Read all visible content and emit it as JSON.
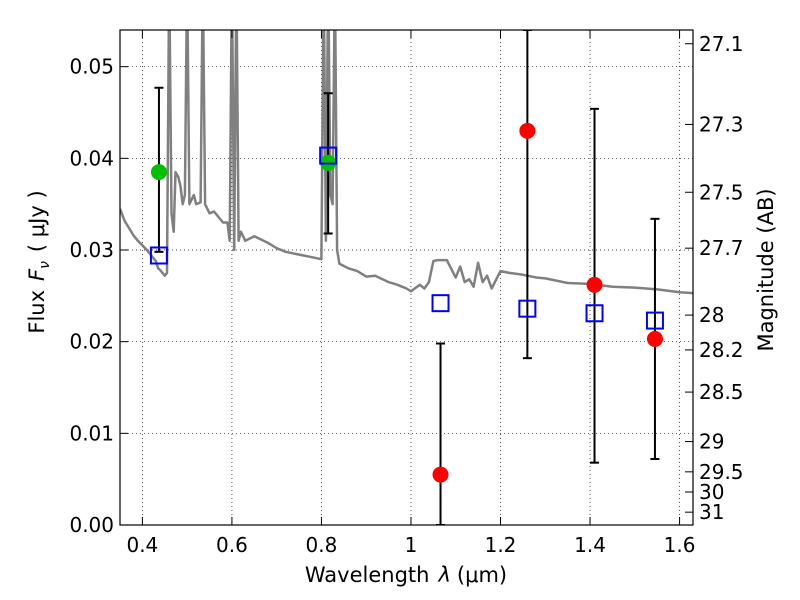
{
  "chart_data": {
    "type": "scatter",
    "xlabel_text": "Wavelength",
    "xlabel_symbol": "λ",
    "xlabel_unit": "(μm)",
    "ylabel_text": "Flux",
    "ylabel_symbol": "F",
    "ylabel_subscript": "ν",
    "ylabel_unit": "( μJy )",
    "y2label": "Magnitude (AB)",
    "xlim": [
      0.35,
      1.63
    ],
    "ylim": [
      0.0,
      0.054
    ],
    "grid": true,
    "xticks": [
      0.4,
      0.6,
      0.8,
      1.0,
      1.2,
      1.4,
      1.6
    ],
    "xtick_labels": [
      "0.4",
      "0.6",
      "0.8",
      "1",
      "1.2",
      "1.4",
      "1.6"
    ],
    "yticks": [
      0.0,
      0.01,
      0.02,
      0.03,
      0.04,
      0.05
    ],
    "ytick_labels": [
      "0.00",
      "0.01",
      "0.02",
      "0.03",
      "0.04",
      "0.05"
    ],
    "y2ticks": [
      {
        "label": "27.1",
        "flux": 0.0525
      },
      {
        "label": "27.3",
        "flux": 0.0437
      },
      {
        "label": "27.5",
        "flux": 0.0363
      },
      {
        "label": "27.7",
        "flux": 0.0302
      },
      {
        "label": "28",
        "flux": 0.0229
      },
      {
        "label": "28.2",
        "flux": 0.0191
      },
      {
        "label": "28.5",
        "flux": 0.0145
      },
      {
        "label": "29",
        "flux": 0.0091
      },
      {
        "label": "29.5",
        "flux": 0.0058
      },
      {
        "label": "30",
        "flux": 0.0036
      },
      {
        "label": "31",
        "flux": 0.0014
      }
    ],
    "colors": {
      "model": "#808080",
      "green": "#00c000",
      "red": "#ff0000",
      "blue": "#0000ff",
      "errorbar": "#000000"
    },
    "model_spectrum": {
      "x": [
        0.35,
        0.36,
        0.37,
        0.38,
        0.39,
        0.4,
        0.41,
        0.42,
        0.43,
        0.435,
        0.44,
        0.445,
        0.45,
        0.455,
        0.46,
        0.465,
        0.47,
        0.474,
        0.48,
        0.485,
        0.49,
        0.495,
        0.5,
        0.505,
        0.51,
        0.515,
        0.52,
        0.53,
        0.535,
        0.54,
        0.55,
        0.56,
        0.58,
        0.59,
        0.595,
        0.6,
        0.605,
        0.61,
        0.615,
        0.62,
        0.63,
        0.65,
        0.68,
        0.7,
        0.72,
        0.75,
        0.78,
        0.8,
        0.805,
        0.81,
        0.815,
        0.82,
        0.825,
        0.83,
        0.835,
        0.84,
        0.86,
        0.88,
        0.9,
        0.92,
        0.95,
        0.97,
        0.99,
        1.0,
        1.02,
        1.03,
        1.04,
        1.05,
        1.06,
        1.08,
        1.1,
        1.11,
        1.12,
        1.13,
        1.14,
        1.15,
        1.16,
        1.17,
        1.18,
        1.2,
        1.22,
        1.25,
        1.28,
        1.3,
        1.35,
        1.4,
        1.45,
        1.5,
        1.55,
        1.6,
        1.63
      ],
      "y": [
        0.0345,
        0.0332,
        0.0324,
        0.0316,
        0.031,
        0.0305,
        0.03,
        0.0294,
        0.0288,
        0.028,
        0.0278,
        0.0275,
        0.0272,
        0.0275,
        0.06,
        0.034,
        0.032,
        0.0385,
        0.038,
        0.037,
        0.035,
        0.036,
        0.06,
        0.035,
        0.0355,
        0.036,
        0.035,
        0.0352,
        0.06,
        0.035,
        0.034,
        0.0342,
        0.033,
        0.033,
        0.031,
        0.06,
        0.03,
        0.06,
        0.031,
        0.032,
        0.031,
        0.0315,
        0.0308,
        0.0302,
        0.0298,
        0.0295,
        0.0292,
        0.029,
        0.06,
        0.031,
        0.06,
        0.036,
        0.035,
        0.06,
        0.03,
        0.0285,
        0.028,
        0.0277,
        0.0271,
        0.0272,
        0.0265,
        0.0262,
        0.0258,
        0.0255,
        0.0262,
        0.0258,
        0.0265,
        0.0288,
        0.0289,
        0.0289,
        0.027,
        0.0282,
        0.0265,
        0.0268,
        0.026,
        0.0286,
        0.0265,
        0.0272,
        0.0258,
        0.0277,
        0.0275,
        0.0273,
        0.027,
        0.0269,
        0.0264,
        0.0263,
        0.026,
        0.0259,
        0.0257,
        0.0254,
        0.0253
      ]
    },
    "series": [
      {
        "marker": "circle",
        "color": "green",
        "points": [
          {
            "x": 0.437,
            "y": 0.0385,
            "ylo": 0.0298,
            "yhi": 0.0477
          },
          {
            "x": 0.815,
            "y": 0.0395,
            "ylo": 0.0318,
            "yhi": 0.0471
          }
        ]
      },
      {
        "marker": "circle",
        "color": "red",
        "points": [
          {
            "x": 1.066,
            "y": 0.0055,
            "ylo": 0.0,
            "yhi": 0.0198
          },
          {
            "x": 1.26,
            "y": 0.043,
            "ylo": 0.0182,
            "yhi": 0.054
          },
          {
            "x": 1.41,
            "y": 0.0262,
            "ylo": 0.0068,
            "yhi": 0.0454
          },
          {
            "x": 1.545,
            "y": 0.0203,
            "ylo": 0.0072,
            "yhi": 0.0334
          }
        ]
      },
      {
        "marker": "square-open",
        "color": "blue",
        "points": [
          {
            "x": 0.437,
            "y": 0.0294
          },
          {
            "x": 0.815,
            "y": 0.0403
          },
          {
            "x": 1.066,
            "y": 0.0242
          },
          {
            "x": 1.26,
            "y": 0.0236
          },
          {
            "x": 1.41,
            "y": 0.0231
          },
          {
            "x": 1.545,
            "y": 0.0223
          }
        ]
      }
    ]
  }
}
